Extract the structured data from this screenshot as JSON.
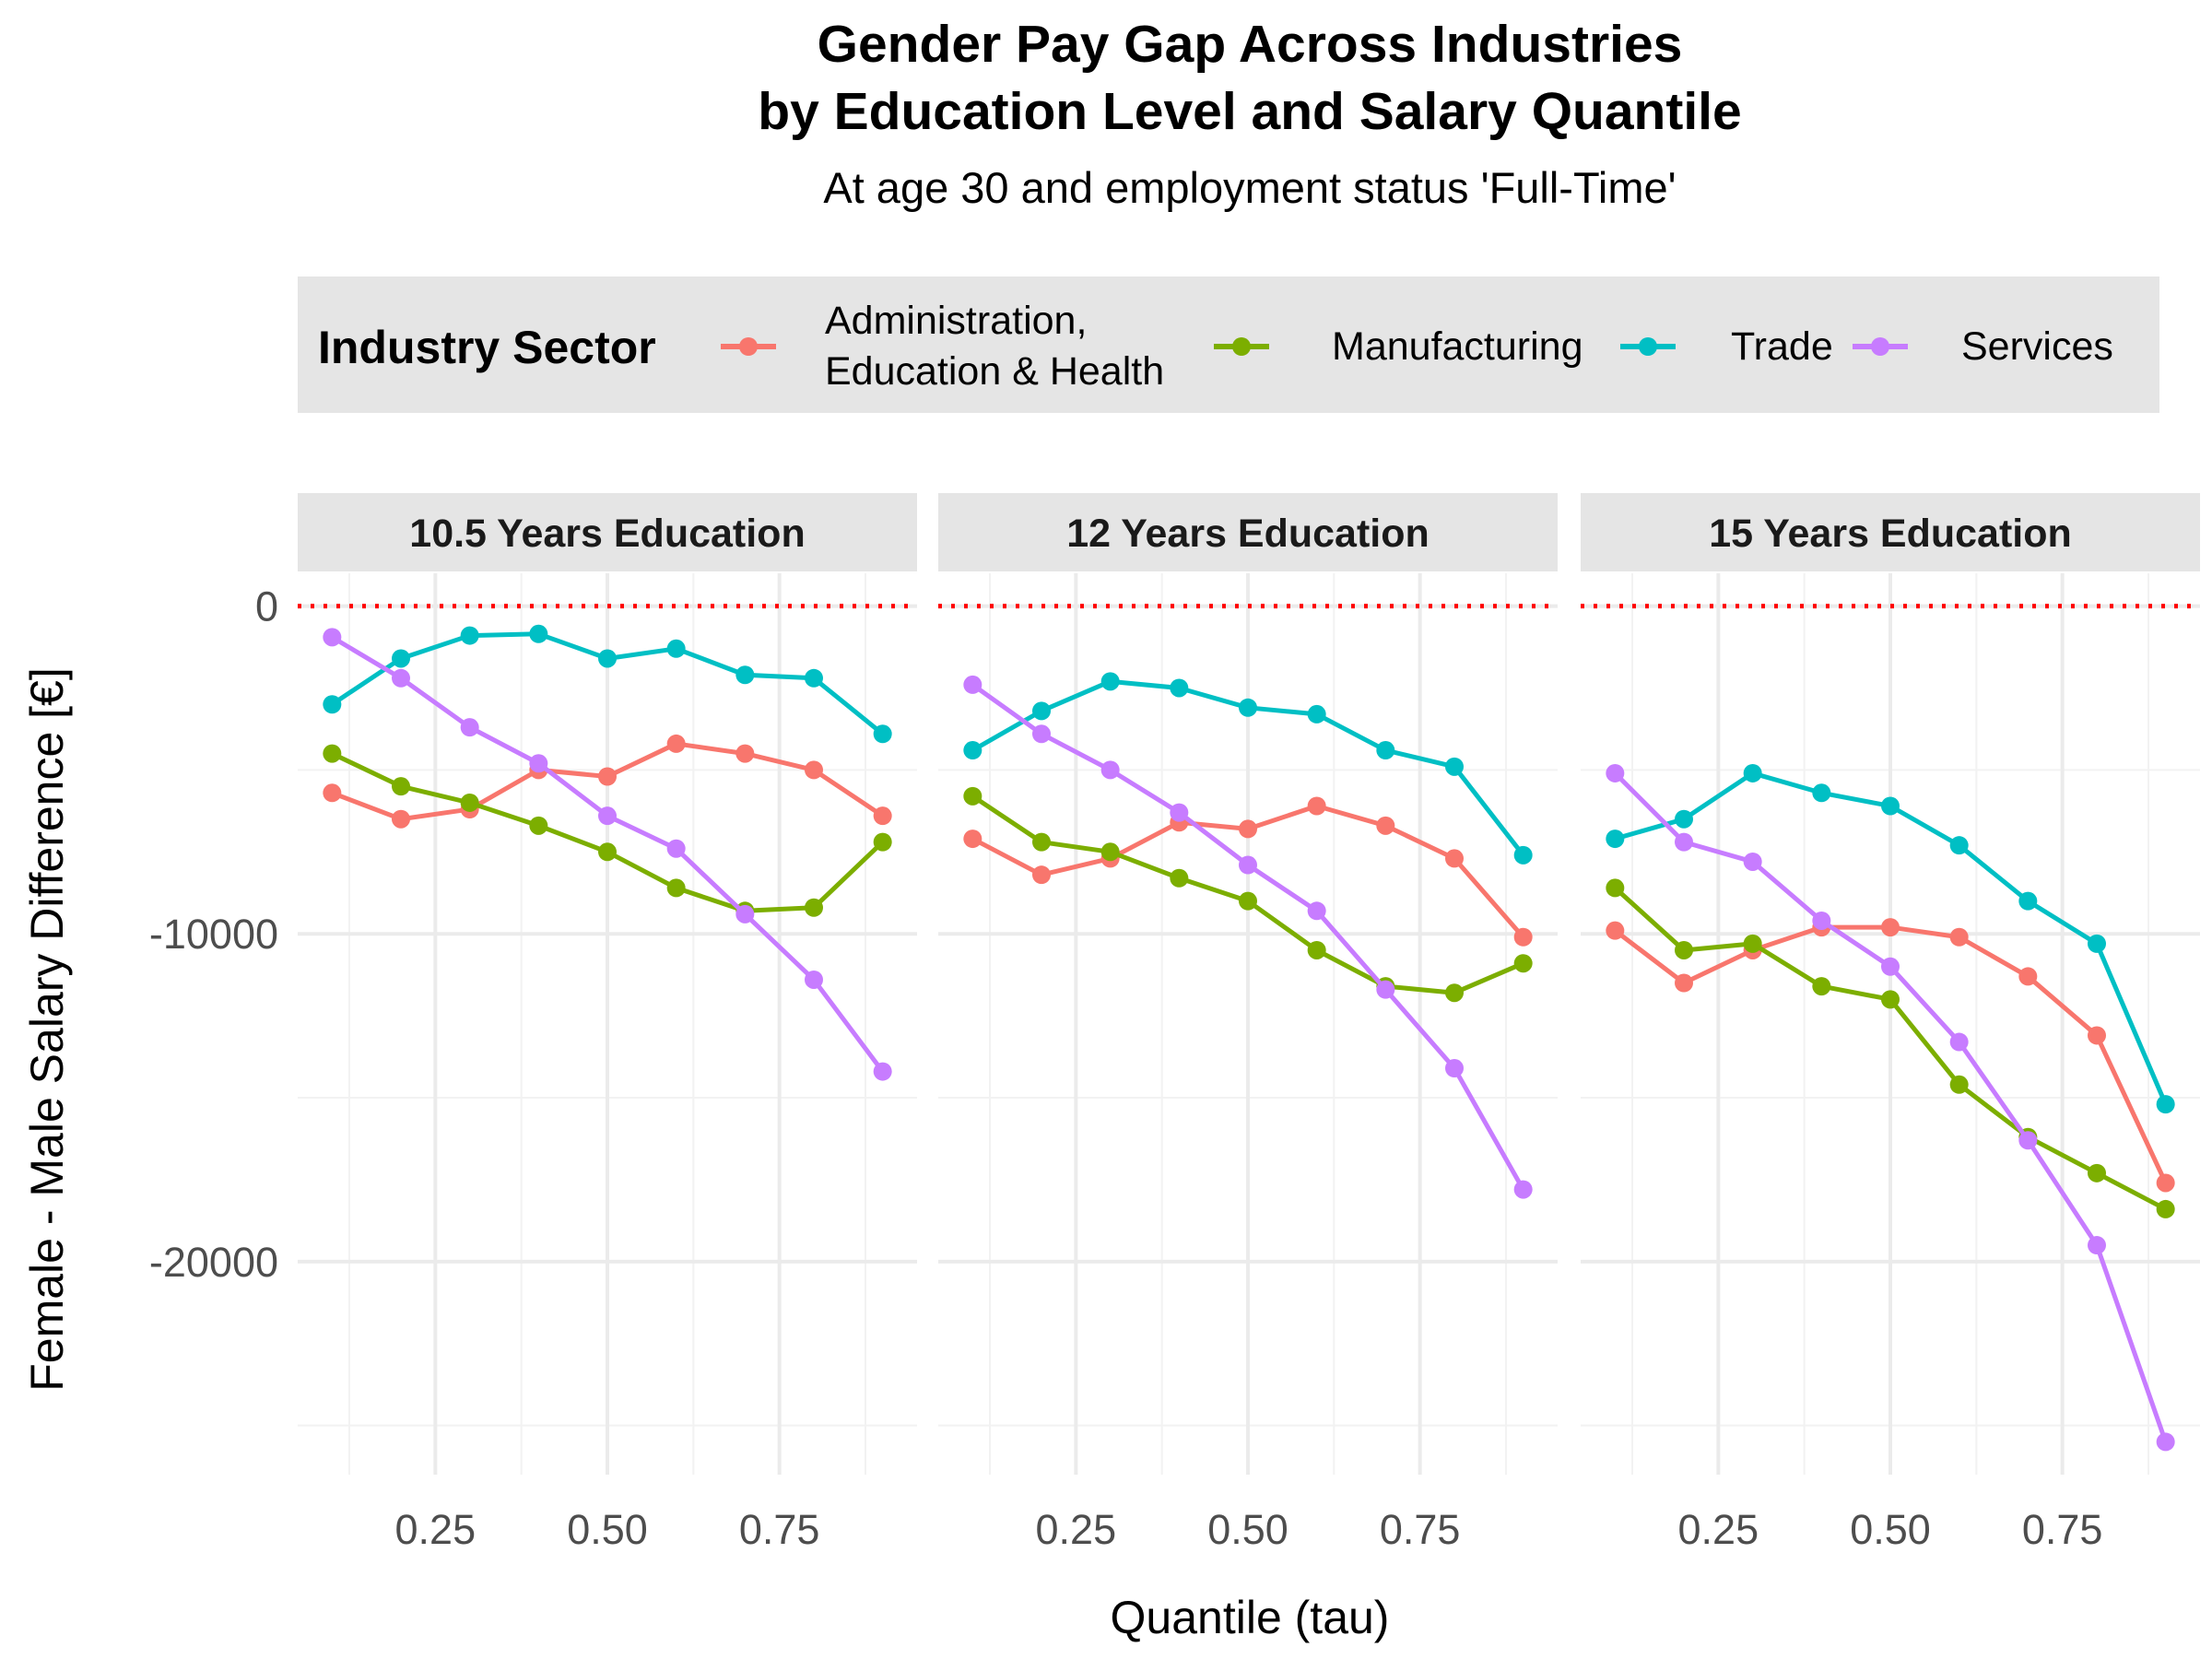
{
  "chart_data": {
    "type": "line",
    "title": "Gender Pay Gap Across Industries",
    "title_line2": "by Education Level and Salary Quantile",
    "subtitle": "At age 30 and employment status 'Full-Time'",
    "xlabel": "Quantile (tau)",
    "ylabel": "Female - Male Salary Difference [€]",
    "legend": {
      "title": "Industry Sector",
      "placement": "top"
    },
    "reference_line": {
      "y": 0,
      "color": "#ff0000",
      "style": "dotted"
    },
    "x": [
      0.1,
      0.2,
      0.3,
      0.4,
      0.5,
      0.6,
      0.7,
      0.8,
      0.9
    ],
    "xlim": [
      0.05,
      0.95
    ],
    "ylim": [
      -26500,
      1000
    ],
    "x_ticks": [
      {
        "value": 0.25,
        "label": "0.25"
      },
      {
        "value": 0.5,
        "label": "0.50"
      },
      {
        "value": 0.75,
        "label": "0.75"
      }
    ],
    "y_ticks": [
      {
        "value": 0,
        "label": "0"
      },
      {
        "value": -10000,
        "label": "-10000"
      },
      {
        "value": -20000,
        "label": "-20000"
      }
    ],
    "grid": true,
    "panels": [
      {
        "label": "10.5 Years Education",
        "series": [
          {
            "name": "Administration, Education & Health",
            "color": "#F8766D",
            "values": [
              -5700,
              -6500,
              -6200,
              -5000,
              -5200,
              -4200,
              -4500,
              -5000,
              -6400
            ]
          },
          {
            "name": "Manufacturing",
            "color": "#7CAE00",
            "values": [
              -4500,
              -5500,
              -6000,
              -6700,
              -7500,
              -8600,
              -9300,
              -9200,
              -7200
            ]
          },
          {
            "name": "Trade",
            "color": "#00BFC4",
            "values": [
              -3000,
              -1600,
              -900,
              -850,
              -1600,
              -1300,
              -2100,
              -2200,
              -3900
            ]
          },
          {
            "name": "Services",
            "color": "#C77CFF",
            "values": [
              -950,
              -2200,
              -3700,
              -4800,
              -6400,
              -7400,
              -9400,
              -11400,
              -14200
            ]
          }
        ]
      },
      {
        "label": "12 Years Education",
        "series": [
          {
            "name": "Administration, Education & Health",
            "color": "#F8766D",
            "values": [
              -7100,
              -8200,
              -7700,
              -6600,
              -6800,
              -6100,
              -6700,
              -7700,
              -10100
            ]
          },
          {
            "name": "Manufacturing",
            "color": "#7CAE00",
            "values": [
              -5800,
              -7200,
              -7500,
              -8300,
              -9000,
              -10500,
              -11600,
              -11800,
              -10900
            ]
          },
          {
            "name": "Trade",
            "color": "#00BFC4",
            "values": [
              -4400,
              -3200,
              -2300,
              -2500,
              -3100,
              -3300,
              -4400,
              -4900,
              -7600
            ]
          },
          {
            "name": "Services",
            "color": "#C77CFF",
            "values": [
              -2400,
              -3900,
              -5000,
              -6300,
              -7900,
              -9300,
              -11700,
              -14100,
              -17800
            ]
          }
        ]
      },
      {
        "label": "15 Years Education",
        "series": [
          {
            "name": "Administration, Education & Health",
            "color": "#F8766D",
            "values": [
              -9900,
              -11500,
              -10500,
              -9800,
              -9800,
              -10100,
              -11300,
              -13100,
              -17600
            ]
          },
          {
            "name": "Manufacturing",
            "color": "#7CAE00",
            "values": [
              -8600,
              -10500,
              -10300,
              -11600,
              -12000,
              -14600,
              -16200,
              -17300,
              -18400
            ]
          },
          {
            "name": "Trade",
            "color": "#00BFC4",
            "values": [
              -7100,
              -6500,
              -5100,
              -5700,
              -6100,
              -7300,
              -9000,
              -10300,
              -15200
            ]
          },
          {
            "name": "Services",
            "color": "#C77CFF",
            "values": [
              -5100,
              -7200,
              -7800,
              -9600,
              -11000,
              -13300,
              -16300,
              -19500,
              -25500
            ]
          }
        ]
      }
    ]
  }
}
